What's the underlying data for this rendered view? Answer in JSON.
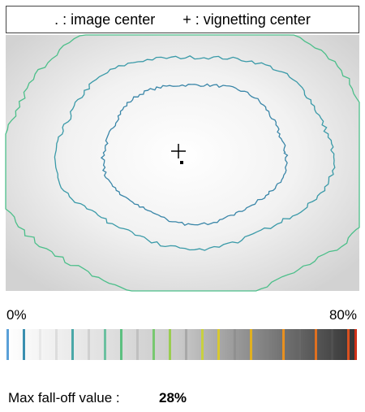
{
  "legend": {
    "image_center": ". : image center",
    "vignetting_center": "+ : vignetting center"
  },
  "scale": {
    "min_label": "0%",
    "max_label": "80%"
  },
  "result": {
    "label": "Max fall-off value :",
    "value": "28%"
  }
}
